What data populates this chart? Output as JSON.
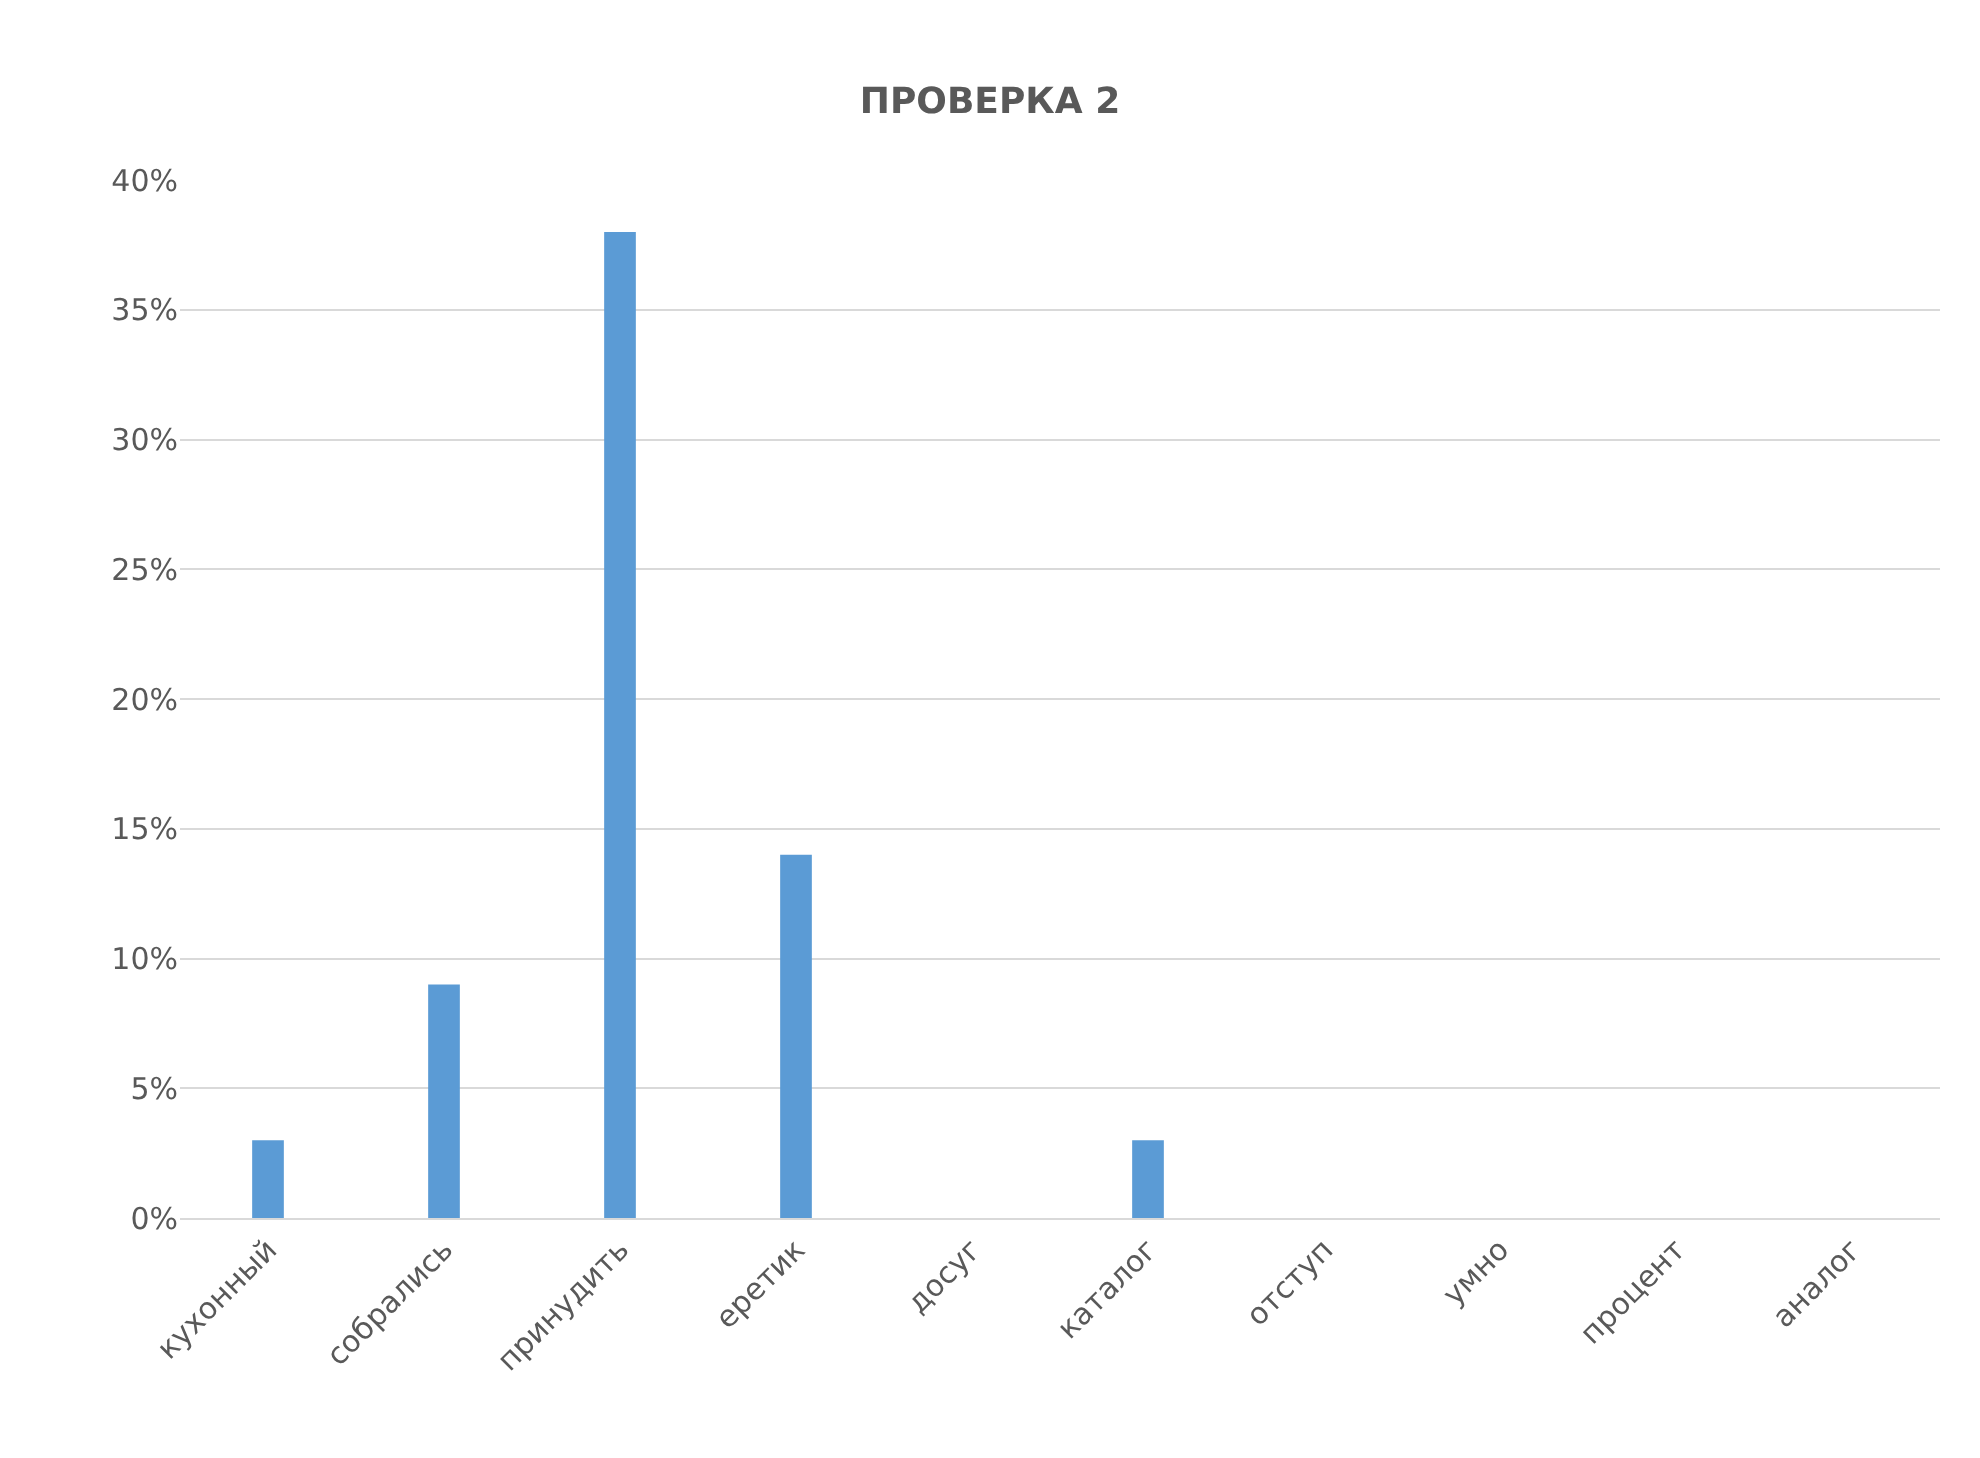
{
  "chart_data": {
    "type": "bar",
    "title": "ПРОВЕРКА 2",
    "categories": [
      "кухонный",
      "собрались",
      "принудить",
      "еретик",
      "досуг",
      "каталог",
      "отступ",
      "умно",
      "процент",
      "аналог"
    ],
    "values": [
      3,
      9,
      38,
      14,
      0,
      3,
      0,
      0,
      0,
      0
    ],
    "color": "#5b9bd5",
    "ylim": [
      0,
      40
    ],
    "yticks": [
      {
        "value": 0,
        "label": "0%"
      },
      {
        "value": 5,
        "label": "5%"
      },
      {
        "value": 10,
        "label": "10%"
      },
      {
        "value": 15,
        "label": "15%"
      },
      {
        "value": 20,
        "label": "20%"
      },
      {
        "value": 25,
        "label": "25%"
      },
      {
        "value": 30,
        "label": "30%"
      },
      {
        "value": 35,
        "label": "35%"
      },
      {
        "value": 40,
        "label": "40%"
      }
    ],
    "grid": "y"
  }
}
